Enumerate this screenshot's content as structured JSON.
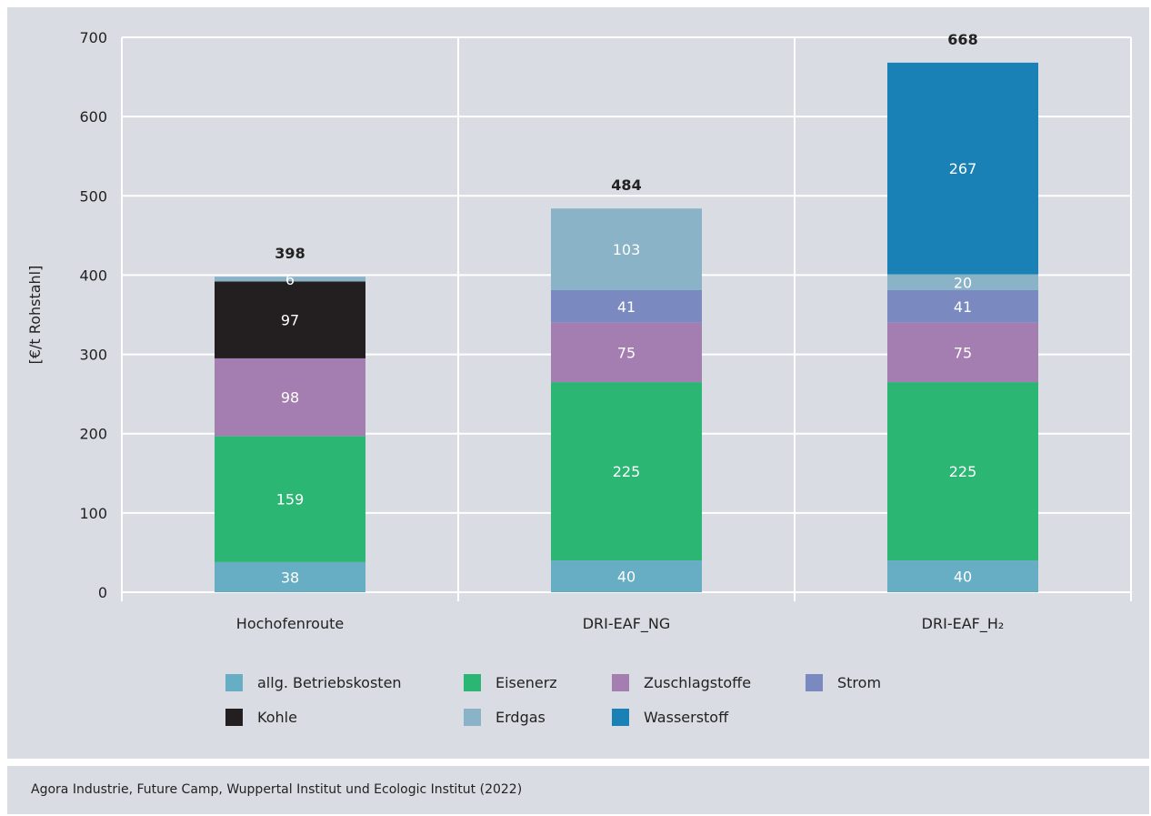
{
  "chart_data": {
    "type": "bar",
    "stacked": true,
    "ylabel": "[€/t Rohstahl]",
    "ylim": [
      0,
      700
    ],
    "yticks": [
      0,
      100,
      200,
      300,
      400,
      500,
      600,
      700
    ],
    "grid": true,
    "legend_position": "bottom",
    "categories": [
      "Hochofenroute",
      "DRI-EAF_NG",
      "DRI-EAF_H₂"
    ],
    "totals": [
      398,
      484,
      668
    ],
    "series": [
      {
        "name": "allg. Betriebskosten",
        "color": "#67adc4",
        "label_color": "#ffffff",
        "values": [
          38,
          40,
          40
        ]
      },
      {
        "name": "Eisenerz",
        "color": "#2bb673",
        "label_color": "#ffffff",
        "values": [
          159,
          225,
          225
        ]
      },
      {
        "name": "Zuschlagstoffe",
        "color": "#a47eb0",
        "label_color": "#ffffff",
        "values": [
          98,
          75,
          75
        ]
      },
      {
        "name": "Kohle",
        "color": "#231f20",
        "label_color": "#ffffff",
        "values": [
          97,
          0,
          0
        ]
      },
      {
        "name": "Strom",
        "color": "#7a89bf",
        "label_color": "#ffffff",
        "values": [
          0,
          41,
          41
        ]
      },
      {
        "name": "Erdgas",
        "color": "#8ab3c8",
        "label_color": "#ffffff",
        "values": [
          6,
          103,
          20
        ]
      },
      {
        "name": "Wasserstoff",
        "color": "#1a81b6",
        "label_color": "#ffffff",
        "values": [
          0,
          0,
          267
        ]
      }
    ],
    "legend_rows": [
      [
        "allg. Betriebskosten",
        "Eisenerz",
        "Zuschlagstoffe",
        "Strom"
      ],
      [
        "Kohle",
        "Erdgas",
        "Wasserstoff"
      ]
    ]
  },
  "source": "Agora Industrie, Future Camp, Wuppertal Institut und Ecologic Institut (2022)"
}
